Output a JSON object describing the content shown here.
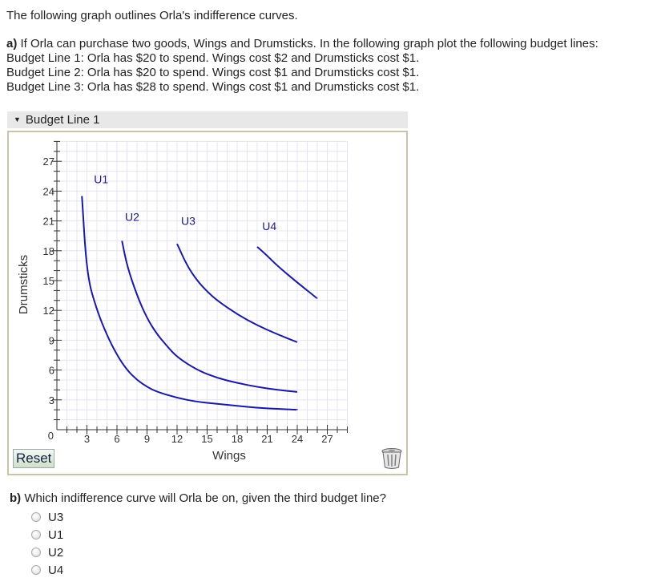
{
  "intro": "The following graph outlines Orla's indifference curves.",
  "question_a": {
    "label": "a)",
    "text": "If Orla can purchase two goods, Wings and Drumsticks. In the following graph plot the following budget lines:",
    "lines": [
      "Budget Line 1: Orla has $20 to spend. Wings cost $2 and Drumsticks cost $1.",
      "Budget Line 2: Orla has $20 to spend. Wings cost $1 and Drumsticks cost $1.",
      "Budget Line 3: Orla has $28 to spend. Wings cost $1 and Drumsticks cost $1."
    ]
  },
  "selector": {
    "label": "Budget Line 1"
  },
  "reset_label": "Reset",
  "chart_data": {
    "type": "line",
    "xlabel": "Wings",
    "ylabel": "Drumsticks",
    "xlim": [
      0,
      29
    ],
    "ylim": [
      0,
      29
    ],
    "x_ticks": [
      "3",
      "6",
      "9",
      "12",
      "15",
      "18",
      "21",
      "24",
      "27"
    ],
    "y_ticks": [
      "27",
      "24",
      "21",
      "18",
      "15",
      "12",
      "9",
      "6",
      "3"
    ],
    "origin_label": "0",
    "curve_color": "#1a1aa0",
    "series": [
      {
        "name": "U1",
        "label_at": [
          3.7,
          24.8
        ],
        "points": [
          [
            2.5,
            23.5
          ],
          [
            3,
            15.5
          ],
          [
            4,
            12
          ],
          [
            5,
            9.5
          ],
          [
            6,
            7.5
          ],
          [
            7,
            6
          ],
          [
            8,
            5
          ],
          [
            9,
            4.3
          ],
          [
            10,
            3.8
          ],
          [
            12,
            3.2
          ],
          [
            14,
            2.8
          ],
          [
            16,
            2.6
          ],
          [
            18,
            2.4
          ],
          [
            20,
            2.2
          ],
          [
            22,
            2.1
          ],
          [
            24,
            2
          ]
        ]
      },
      {
        "name": "U2",
        "label_at": [
          6.8,
          21.0
        ],
        "points": [
          [
            6.5,
            19
          ],
          [
            7,
            16.5
          ],
          [
            8,
            13.5
          ],
          [
            9,
            11.2
          ],
          [
            10,
            9.6
          ],
          [
            11,
            8.4
          ],
          [
            12,
            7.3
          ],
          [
            14,
            6
          ],
          [
            16,
            5.2
          ],
          [
            18,
            4.7
          ],
          [
            20,
            4.3
          ],
          [
            22,
            4
          ],
          [
            24,
            3.8
          ]
        ]
      },
      {
        "name": "U3",
        "label_at": [
          12.4,
          20.6
        ],
        "points": [
          [
            12,
            18.7
          ],
          [
            13,
            16.5
          ],
          [
            14,
            15
          ],
          [
            15,
            13.9
          ],
          [
            16,
            13
          ],
          [
            18,
            11.6
          ],
          [
            20,
            10.5
          ],
          [
            22,
            9.6
          ],
          [
            24,
            8.8
          ]
        ]
      },
      {
        "name": "U4",
        "label_at": [
          20.5,
          20.1
        ],
        "points": [
          [
            20,
            18.4
          ],
          [
            21,
            17.5
          ],
          [
            22,
            16.5
          ],
          [
            24,
            14.8
          ],
          [
            26,
            13.2
          ]
        ]
      }
    ]
  },
  "question_b": {
    "label": "b)",
    "text": "Which indifference curve will Orla be on, given the third budget line?",
    "options": [
      "U3",
      "U1",
      "U2",
      "U4"
    ]
  }
}
